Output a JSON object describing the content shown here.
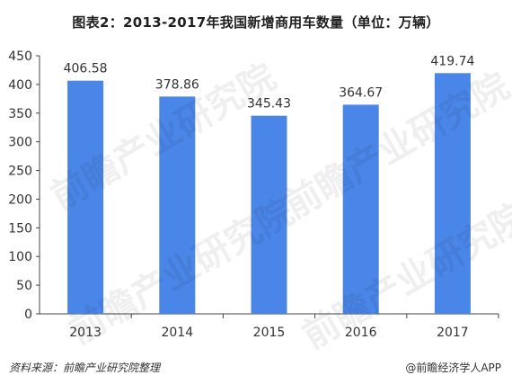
{
  "title": "图表2：2013-2017年我国新增商用车数量（单位：万辆）",
  "source": "资料来源：前瞻产业研究院整理",
  "brand": "@前瞻经济学人APP",
  "watermark": "前瞻产业研究院",
  "colors": {
    "bar": "#4a86e8",
    "axis": "#444444",
    "text": "#333333"
  },
  "chart_data": {
    "type": "bar",
    "title": "图表2：2013-2017年我国新增商用车数量（单位：万辆）",
    "categories": [
      "2013",
      "2014",
      "2015",
      "2016",
      "2017"
    ],
    "values": [
      406.58,
      378.86,
      345.43,
      364.67,
      419.74
    ],
    "value_labels": [
      "406.58",
      "378.86",
      "345.43",
      "364.67",
      "419.74"
    ],
    "yticks": [
      "0",
      "50",
      "100",
      "150",
      "200",
      "250",
      "300",
      "350",
      "400",
      "450"
    ],
    "ylim": [
      0,
      450
    ],
    "grid": false,
    "legend": "none",
    "xlabel": "",
    "ylabel": ""
  }
}
